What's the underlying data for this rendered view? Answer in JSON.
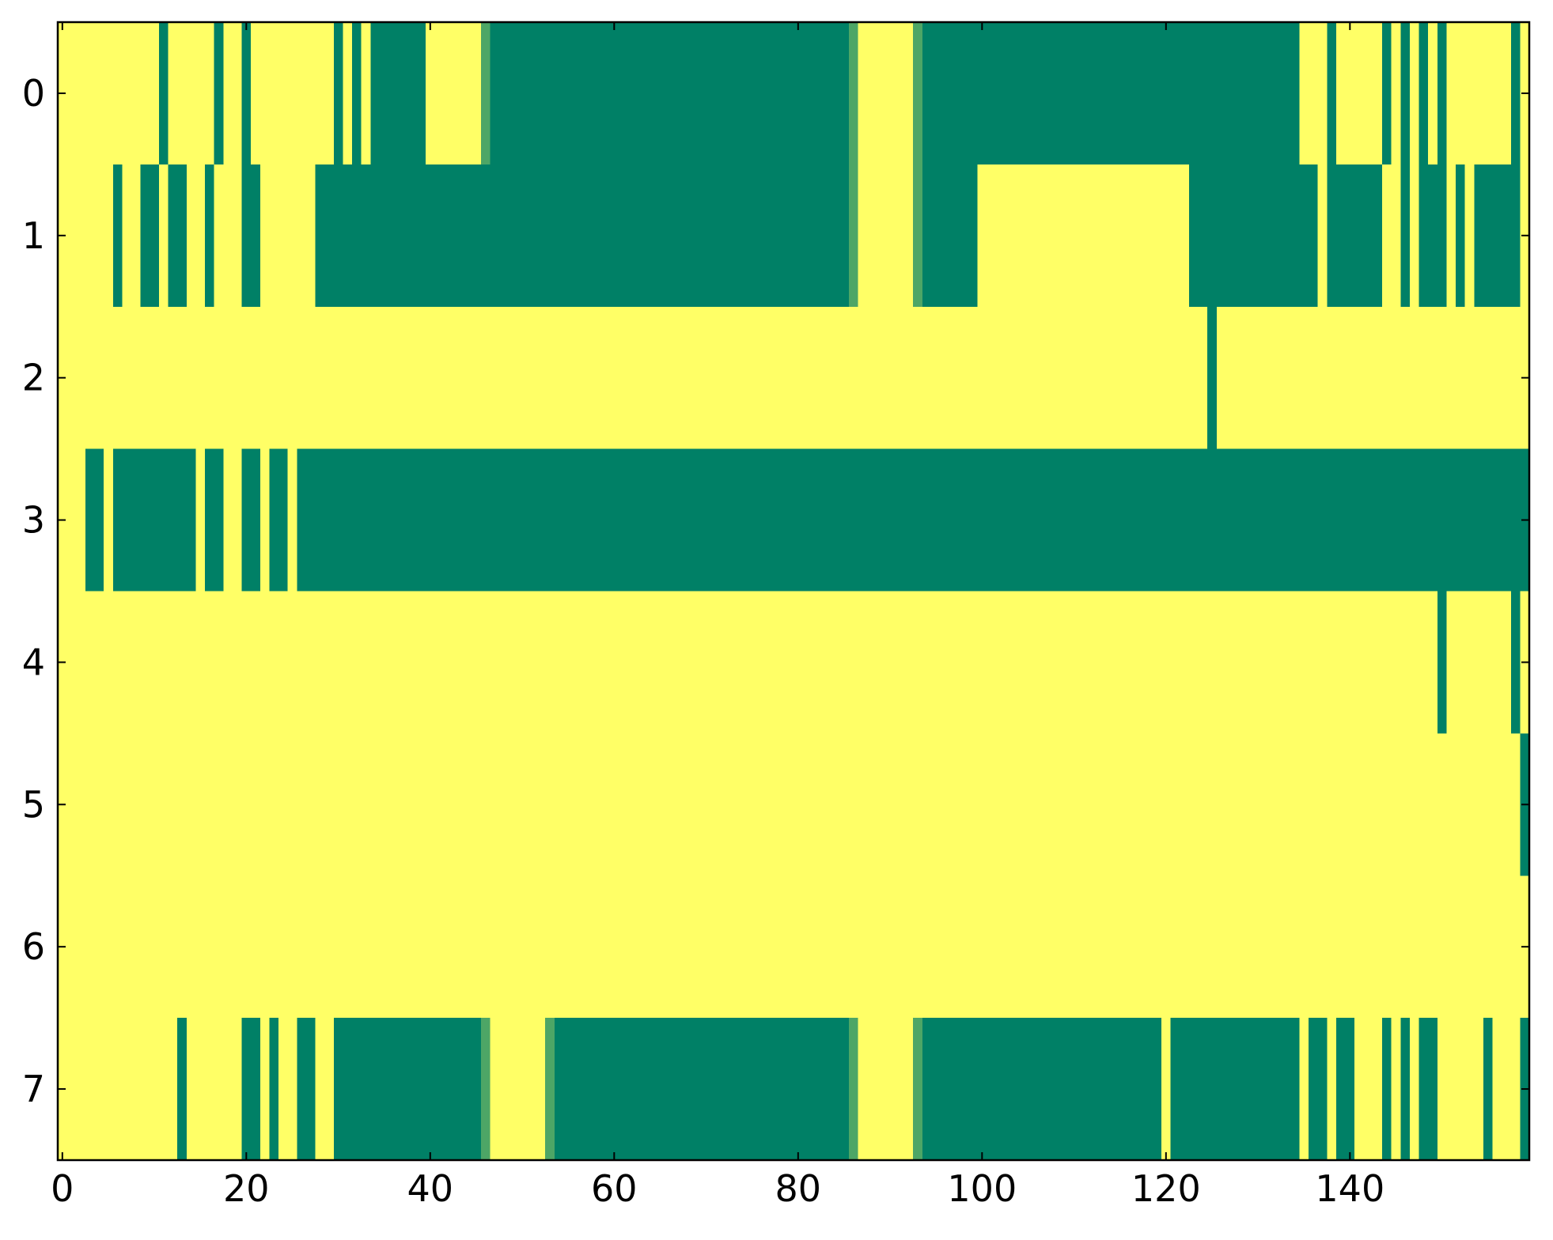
{
  "chart_data": {
    "type": "heatmap",
    "colors": {
      "low": "#008066",
      "high": "#ffff66"
    },
    "xlim": [
      -0.5,
      159.5
    ],
    "ylim": [
      7.5,
      -0.5
    ],
    "xticks": [
      0,
      20,
      40,
      60,
      80,
      100,
      120,
      140
    ],
    "yticks": [
      0,
      1,
      2,
      3,
      4,
      5,
      6,
      7
    ],
    "z": [
      [
        1,
        1,
        1,
        1,
        1,
        1,
        1,
        1,
        1,
        1,
        1,
        0,
        1,
        1,
        1,
        1,
        1,
        0,
        1,
        1,
        0,
        1,
        1,
        1,
        1,
        1,
        1,
        1,
        1,
        1,
        0,
        1,
        0,
        1,
        0,
        0,
        0,
        0,
        0,
        0,
        1,
        1,
        1,
        1,
        1,
        1,
        0.3,
        0,
        0,
        0,
        0,
        0,
        0,
        0,
        0,
        0,
        0,
        0,
        0,
        0,
        0,
        0,
        0,
        0,
        0,
        0,
        0,
        0,
        0,
        0,
        0,
        0,
        0,
        0,
        0,
        0,
        0,
        0,
        0,
        0,
        0,
        0,
        0,
        0,
        0,
        0,
        0.3,
        1,
        1,
        1,
        1,
        1,
        1,
        0.3,
        0,
        0,
        0,
        0,
        0,
        0,
        0,
        0,
        0,
        0,
        0,
        0,
        0,
        0,
        0,
        0,
        0,
        0,
        0,
        0,
        0,
        0,
        0,
        0,
        0,
        0,
        0,
        0,
        0,
        0,
        0,
        0,
        0,
        0,
        0,
        0,
        0,
        0,
        0,
        0,
        0,
        1,
        1,
        1,
        0,
        1,
        1,
        1,
        1,
        1,
        0,
        1,
        0,
        1,
        0,
        1,
        0,
        1,
        1,
        1,
        1,
        1,
        1,
        1,
        0,
        1
      ],
      [
        1,
        1,
        1,
        1,
        1,
        1,
        0,
        1,
        1,
        0,
        0,
        1,
        0,
        0,
        1,
        1,
        0,
        1,
        1,
        1,
        0,
        0,
        1,
        1,
        1,
        1,
        1,
        1,
        0,
        0,
        0,
        0,
        0,
        0,
        0,
        0,
        0,
        0,
        0,
        0,
        0,
        0,
        0,
        0,
        0,
        0,
        0,
        0,
        0,
        0,
        0,
        0,
        0,
        0,
        0,
        0,
        0,
        0,
        0,
        0,
        0,
        0,
        0,
        0,
        0,
        0,
        0,
        0,
        0,
        0,
        0,
        0,
        0,
        0,
        0,
        0,
        0,
        0,
        0,
        0,
        0,
        0,
        0,
        0,
        0,
        0,
        0.3,
        1,
        1,
        1,
        1,
        1,
        1,
        0.3,
        0,
        0,
        0,
        0,
        0,
        0,
        1,
        1,
        1,
        1,
        1,
        1,
        1,
        1,
        1,
        1,
        1,
        1,
        1,
        1,
        1,
        1,
        1,
        1,
        1,
        1,
        1,
        1,
        1,
        0,
        0,
        0,
        0,
        0,
        0,
        0,
        0,
        0,
        0,
        0,
        0,
        0,
        0,
        1,
        0,
        0,
        0,
        0,
        0,
        0,
        1,
        1,
        0,
        1,
        0,
        0,
        0,
        1,
        0,
        1,
        0,
        0,
        0,
        0,
        0,
        1
      ],
      [
        1,
        1,
        1,
        1,
        1,
        1,
        1,
        1,
        1,
        1,
        1,
        1,
        1,
        1,
        1,
        1,
        1,
        1,
        1,
        1,
        1,
        1,
        1,
        1,
        1,
        1,
        1,
        1,
        1,
        1,
        1,
        1,
        1,
        1,
        1,
        1,
        1,
        1,
        1,
        1,
        1,
        1,
        1,
        1,
        1,
        1,
        1,
        1,
        1,
        1,
        1,
        1,
        1,
        1,
        1,
        1,
        1,
        1,
        1,
        1,
        1,
        1,
        1,
        1,
        1,
        1,
        1,
        1,
        1,
        1,
        1,
        1,
        1,
        1,
        1,
        1,
        1,
        1,
        1,
        1,
        1,
        1,
        1,
        1,
        1,
        1,
        1,
        1,
        1,
        1,
        1,
        1,
        1,
        1,
        1,
        1,
        1,
        1,
        1,
        1,
        1,
        1,
        1,
        1,
        1,
        1,
        1,
        1,
        1,
        1,
        1,
        1,
        1,
        1,
        1,
        1,
        1,
        1,
        1,
        1,
        1,
        1,
        1,
        1,
        1,
        0,
        1,
        1,
        1,
        1,
        1,
        1,
        1,
        1,
        1,
        1,
        1,
        1,
        1,
        1,
        1,
        1,
        1,
        1,
        1,
        1,
        1,
        1,
        1,
        1,
        1,
        1,
        1,
        1,
        1,
        1,
        1,
        1,
        1,
        1
      ],
      [
        1,
        1,
        1,
        0,
        0,
        1,
        0,
        0,
        0,
        0,
        0,
        0,
        0,
        0,
        0,
        1,
        0,
        0,
        1,
        1,
        0,
        0,
        1,
        0,
        0,
        1,
        0,
        0,
        0,
        0,
        0,
        0,
        0,
        0,
        0,
        0,
        0,
        0,
        0,
        0,
        0,
        0,
        0,
        0,
        0,
        0,
        0,
        0,
        0,
        0,
        0,
        0,
        0,
        0,
        0,
        0,
        0,
        0,
        0,
        0,
        0,
        0,
        0,
        0,
        0,
        0,
        0,
        0,
        0,
        0,
        0,
        0,
        0,
        0,
        0,
        0,
        0,
        0,
        0,
        0,
        0,
        0,
        0,
        0,
        0,
        0,
        0,
        0,
        0,
        0,
        0,
        0,
        0,
        0,
        0,
        0,
        0,
        0,
        0,
        0,
        0,
        0,
        0,
        0,
        0,
        0,
        0,
        0,
        0,
        0,
        0,
        0,
        0,
        0,
        0,
        0,
        0,
        0,
        0,
        0,
        0,
        0,
        0,
        0,
        0,
        0,
        0,
        0,
        0,
        0,
        0,
        0,
        0,
        0,
        0,
        0,
        0,
        0,
        0,
        0,
        0,
        0,
        0,
        0,
        0,
        0,
        0,
        0,
        0,
        0,
        0,
        0,
        0,
        0,
        0,
        0,
        0,
        0,
        0,
        0
      ],
      [
        1,
        1,
        1,
        1,
        1,
        1,
        1,
        1,
        1,
        1,
        1,
        1,
        1,
        1,
        1,
        1,
        1,
        1,
        1,
        1,
        1,
        1,
        1,
        1,
        1,
        1,
        1,
        1,
        1,
        1,
        1,
        1,
        1,
        1,
        1,
        1,
        1,
        1,
        1,
        1,
        1,
        1,
        1,
        1,
        1,
        1,
        1,
        1,
        1,
        1,
        1,
        1,
        1,
        1,
        1,
        1,
        1,
        1,
        1,
        1,
        1,
        1,
        1,
        1,
        1,
        1,
        1,
        1,
        1,
        1,
        1,
        1,
        1,
        1,
        1,
        1,
        1,
        1,
        1,
        1,
        1,
        1,
        1,
        1,
        1,
        1,
        1,
        1,
        1,
        1,
        1,
        1,
        1,
        1,
        1,
        1,
        1,
        1,
        1,
        1,
        1,
        1,
        1,
        1,
        1,
        1,
        1,
        1,
        1,
        1,
        1,
        1,
        1,
        1,
        1,
        1,
        1,
        1,
        1,
        1,
        1,
        1,
        1,
        1,
        1,
        1,
        1,
        1,
        1,
        1,
        1,
        1,
        1,
        1,
        1,
        1,
        1,
        1,
        1,
        1,
        1,
        1,
        1,
        1,
        1,
        1,
        1,
        1,
        1,
        1,
        0,
        1,
        1,
        1,
        1,
        1,
        1,
        1,
        0,
        1
      ],
      [
        1,
        1,
        1,
        1,
        1,
        1,
        1,
        1,
        1,
        1,
        1,
        1,
        1,
        1,
        1,
        1,
        1,
        1,
        1,
        1,
        1,
        1,
        1,
        1,
        1,
        1,
        1,
        1,
        1,
        1,
        1,
        1,
        1,
        1,
        1,
        1,
        1,
        1,
        1,
        1,
        1,
        1,
        1,
        1,
        1,
        1,
        1,
        1,
        1,
        1,
        1,
        1,
        1,
        1,
        1,
        1,
        1,
        1,
        1,
        1,
        1,
        1,
        1,
        1,
        1,
        1,
        1,
        1,
        1,
        1,
        1,
        1,
        1,
        1,
        1,
        1,
        1,
        1,
        1,
        1,
        1,
        1,
        1,
        1,
        1,
        1,
        1,
        1,
        1,
        1,
        1,
        1,
        1,
        1,
        1,
        1,
        1,
        1,
        1,
        1,
        1,
        1,
        1,
        1,
        1,
        1,
        1,
        1,
        1,
        1,
        1,
        1,
        1,
        1,
        1,
        1,
        1,
        1,
        1,
        1,
        1,
        1,
        1,
        1,
        1,
        1,
        1,
        1,
        1,
        1,
        1,
        1,
        1,
        1,
        1,
        1,
        1,
        1,
        1,
        1,
        1,
        1,
        1,
        1,
        1,
        1,
        1,
        1,
        1,
        1,
        1,
        1,
        1,
        1,
        1,
        1,
        1,
        1,
        1,
        0
      ],
      [
        1,
        1,
        1,
        1,
        1,
        1,
        1,
        1,
        1,
        1,
        1,
        1,
        1,
        1,
        1,
        1,
        1,
        1,
        1,
        1,
        1,
        1,
        1,
        1,
        1,
        1,
        1,
        1,
        1,
        1,
        1,
        1,
        1,
        1,
        1,
        1,
        1,
        1,
        1,
        1,
        1,
        1,
        1,
        1,
        1,
        1,
        1,
        1,
        1,
        1,
        1,
        1,
        1,
        1,
        1,
        1,
        1,
        1,
        1,
        1,
        1,
        1,
        1,
        1,
        1,
        1,
        1,
        1,
        1,
        1,
        1,
        1,
        1,
        1,
        1,
        1,
        1,
        1,
        1,
        1,
        1,
        1,
        1,
        1,
        1,
        1,
        1,
        1,
        1,
        1,
        1,
        1,
        1,
        1,
        1,
        1,
        1,
        1,
        1,
        1,
        1,
        1,
        1,
        1,
        1,
        1,
        1,
        1,
        1,
        1,
        1,
        1,
        1,
        1,
        1,
        1,
        1,
        1,
        1,
        1,
        1,
        1,
        1,
        1,
        1,
        1,
        1,
        1,
        1,
        1,
        1,
        1,
        1,
        1,
        1,
        1,
        1,
        1,
        1,
        1,
        1,
        1,
        1,
        1,
        1,
        1,
        1,
        1,
        1,
        1,
        1,
        1,
        1,
        1,
        1,
        1,
        1,
        1,
        1,
        1
      ],
      [
        1,
        1,
        1,
        1,
        1,
        1,
        1,
        1,
        1,
        1,
        1,
        1,
        1,
        0,
        1,
        1,
        1,
        1,
        1,
        1,
        0,
        0,
        1,
        0,
        1,
        1,
        0,
        0,
        1,
        1,
        0,
        0,
        0,
        0,
        0,
        0,
        0,
        0,
        0,
        0,
        0,
        0,
        0,
        0,
        0,
        0,
        0.3,
        1,
        1,
        1,
        1,
        1,
        1,
        0.3,
        0,
        0,
        0,
        0,
        0,
        0,
        0,
        0,
        0,
        0,
        0,
        0,
        0,
        0,
        0,
        0,
        0,
        0,
        0,
        0,
        0,
        0,
        0,
        0,
        0,
        0,
        0,
        0,
        0,
        0,
        0,
        0,
        0.3,
        1,
        1,
        1,
        1,
        1,
        1,
        0.3,
        0,
        0,
        0,
        0,
        0,
        0,
        0,
        0,
        0,
        0,
        0,
        0,
        0,
        0,
        0,
        0,
        0,
        0,
        0,
        0,
        0,
        0,
        0,
        0,
        0,
        0,
        1,
        0,
        0,
        0,
        0,
        0,
        0,
        0,
        0,
        0,
        0,
        0,
        0,
        0,
        0,
        1,
        0,
        0,
        1,
        0,
        0,
        1,
        1,
        1,
        0,
        1,
        0,
        1,
        0,
        0,
        1,
        1,
        1,
        1,
        1,
        0,
        1,
        1,
        1,
        0
      ]
    ]
  }
}
